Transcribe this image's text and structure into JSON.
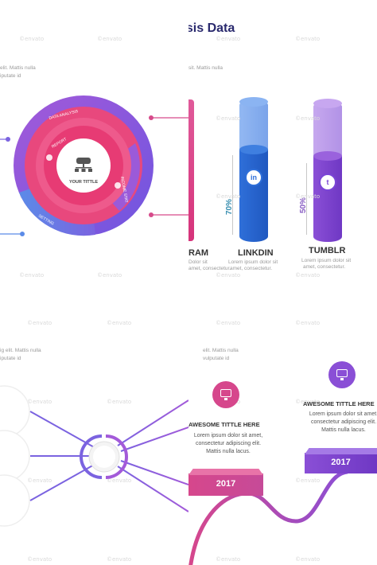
{
  "header": {
    "title_fragment": "ysis Data"
  },
  "watermark": "©envato",
  "top_left": {
    "blurb_line1": "elit. Mattis nulla",
    "blurb_line2": "iputate id",
    "ring_labels": {
      "analysis": "DATA ANALYSIS",
      "report": "REPORT",
      "income": "INCOME STAT",
      "setting": "SETTING"
    },
    "center": "YOUR TITTLE"
  },
  "top_right": {
    "blurb": "sit. Mattis nulla",
    "fragment_label": "RAM",
    "fragment_text1": "Dolor sit",
    "fragment_text2": "amet, consectetur.",
    "bars": [
      {
        "name": "LINKDIN",
        "percent": "70%",
        "icon": "linkedin-icon",
        "glyph": "in",
        "color": "#3a73d6",
        "text1": "Lorem ipsum dolor sit",
        "text2": "amet, consectetur."
      },
      {
        "name": "TUMBLR",
        "percent": "50%",
        "icon": "tumblr-icon",
        "glyph": "t",
        "color": "#7a45d6",
        "text1": "Lorem ipsum dolor sit",
        "text2": "amet, consectetur."
      }
    ]
  },
  "bottom_left": {
    "blurb_line1": "ig elit. Mattis nulla",
    "blurb_line2": "iputate id"
  },
  "bottom_right": {
    "blurb_line1": "elit. Mattis nulla",
    "blurb_line2": "vulputate id",
    "card1": {
      "title": "AWESOME TITTLE HERE",
      "line1": "Lorem ipsum dolor sit amet,",
      "line2": "consectetur adipiscing elit.",
      "line3": "Mattis nulla lacus.",
      "year": "2017"
    },
    "card2": {
      "title": "AWESOME TITTLE HERE",
      "line1": "Lorem ipsum dolor sit amet,",
      "line2": "consectetur adipiscing elit.",
      "line3": "Mattis nulla lacus.",
      "year": "2017"
    }
  },
  "colors": {
    "pink": "#e8487d",
    "purple": "#8a4fd6",
    "blue": "#3a73d6",
    "navy": "#2a2a6e"
  }
}
